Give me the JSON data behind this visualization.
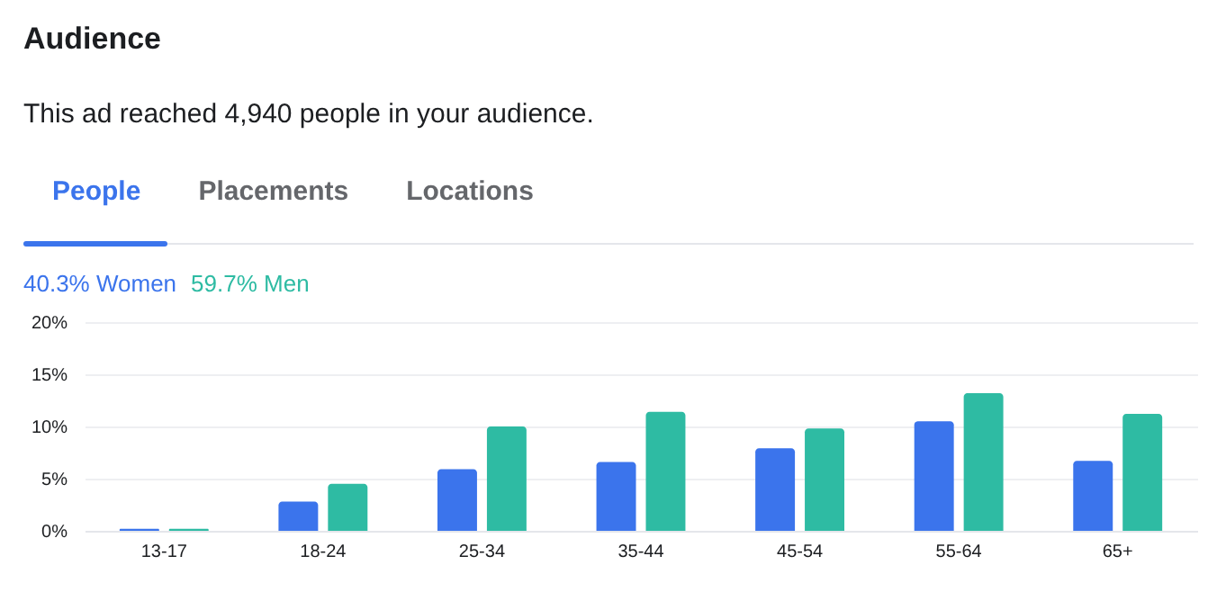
{
  "chart_data": {
    "type": "bar",
    "title": "Audience",
    "subtitle": "This ad reached 4,940 people in your audience.",
    "annotations": [
      "People",
      "Placements",
      "Locations"
    ],
    "categories": [
      "13-17",
      "18-24",
      "25-34",
      "35-44",
      "45-54",
      "55-64",
      "65+"
    ],
    "series": [
      {
        "name": "40.3% Women",
        "color": "#3b74ec",
        "values": [
          0.2,
          2.8,
          5.9,
          6.6,
          7.9,
          10.5,
          6.7
        ]
      },
      {
        "name": "59.7% Men",
        "color": "#2ebba3",
        "values": [
          0.2,
          4.5,
          10.0,
          11.4,
          9.8,
          13.2,
          11.2
        ]
      }
    ],
    "ylim": [
      0,
      20
    ],
    "yticks": [
      {
        "value": 0,
        "label": "0%"
      },
      {
        "value": 5,
        "label": "5%"
      },
      {
        "value": 10,
        "label": "10%"
      },
      {
        "value": 15,
        "label": "15%"
      },
      {
        "value": 20,
        "label": "20%"
      }
    ],
    "grid": "y",
    "legend": "top left"
  }
}
